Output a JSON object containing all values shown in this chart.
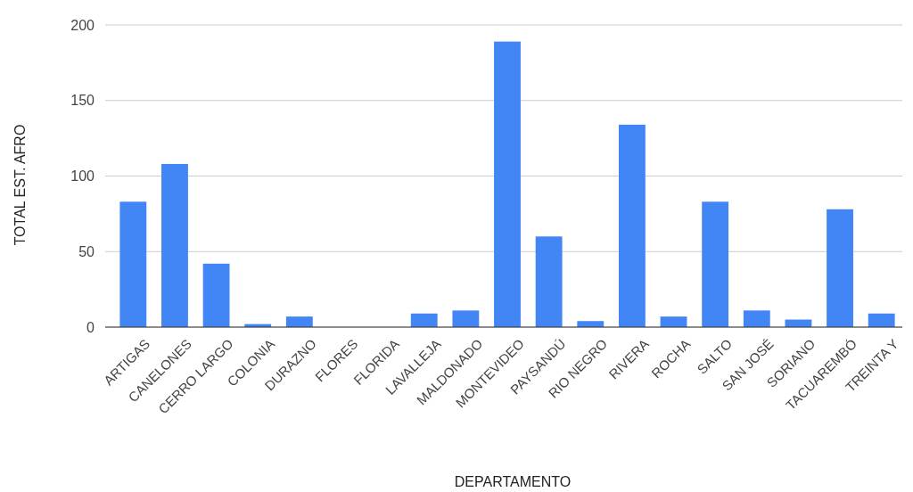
{
  "chart_data": {
    "type": "bar",
    "xlabel": "DEPARTAMENTO",
    "ylabel": "TOTAL EST. AFRO",
    "categories": [
      "ARTIGAS",
      "CANELONES",
      "CERRO LARGO",
      "COLONIA",
      "DURAZNO",
      "FLORES",
      "FLORIDA",
      "LAVALLEJA",
      "MALDONADO",
      "MONTEVIDEO",
      "PAYSANDÚ",
      "RIO NEGRO",
      "RIVERA",
      "ROCHA",
      "SALTO",
      "SAN JOSÉ",
      "SORIANO",
      "TACUAREMBÓ",
      "TREINTA Y"
    ],
    "values": [
      83,
      108,
      42,
      2,
      7,
      0,
      0,
      9,
      11,
      189,
      60,
      4,
      134,
      7,
      83,
      11,
      5,
      78,
      9
    ],
    "color": "#4285f4",
    "ylim": [
      0,
      200
    ],
    "yticks": [
      0,
      50,
      100,
      150,
      200
    ],
    "grid": "y"
  }
}
